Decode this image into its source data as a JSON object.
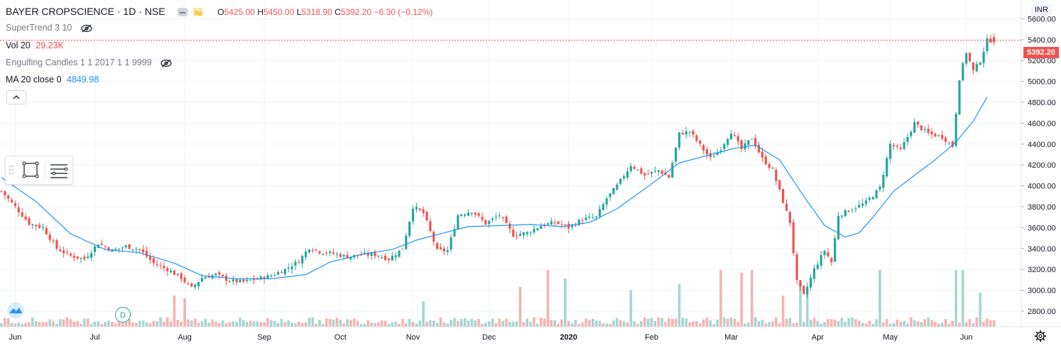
{
  "header": {
    "title": "BAYER CROPSCIENCE · 1D · NSE",
    "o_label": "O",
    "o": "5425.00",
    "h_label": "H",
    "h": "5450.00",
    "l_label": "L",
    "l": "5318.90",
    "c_label": "C",
    "c": "5392.20",
    "change": "−6.30 (−0.12%)"
  },
  "indicators": {
    "supertrend": "SuperTrend 3 10",
    "vol_label": "Vol 20",
    "vol_value": "29.23K",
    "engulfing": "Engulfing Candles 1 1 2017 1 1 9999",
    "ma_label": "MA 20 close 0",
    "ma_value": "4849.98"
  },
  "currency": "INR",
  "last_price": "5392.20",
  "marker": "D",
  "colors": {
    "up": "#26a69a",
    "down": "#ef5350",
    "ma": "#2196f3",
    "grid": "#f0f3fa",
    "axis_text": "#131722"
  },
  "icons": [
    "chart-type-icon",
    "eye-slash-icon",
    "rectangle-tool-icon",
    "lines-tool-icon",
    "tradingview-logo-icon",
    "settings-gear-icon"
  ],
  "chart_data": {
    "type": "candlestick",
    "title": "BAYER CROPSCIENCE · 1D · NSE",
    "ylim": [
      2650,
      5780
    ],
    "y_ticks": [
      2800,
      3000,
      3200,
      3400,
      3600,
      3800,
      4000,
      4200,
      4400,
      4600,
      4800,
      5000,
      5200,
      5400,
      5600
    ],
    "x_ticks": [
      "Jun",
      "Jul",
      "Aug",
      "Sep",
      "Oct",
      "Nov",
      "Dec",
      "2020",
      "Feb",
      "Mar",
      "Apr",
      "May",
      "Jun"
    ],
    "x_tick_index": [
      4,
      27,
      53,
      76,
      98,
      119,
      141,
      164,
      188,
      211,
      236,
      257,
      279
    ],
    "grid": true,
    "close_series": [
      {
        "i": 0,
        "v": 3950
      },
      {
        "i": 4,
        "v": 3800
      },
      {
        "i": 8,
        "v": 3640
      },
      {
        "i": 12,
        "v": 3600
      },
      {
        "i": 16,
        "v": 3400
      },
      {
        "i": 20,
        "v": 3330
      },
      {
        "i": 24,
        "v": 3300
      },
      {
        "i": 28,
        "v": 3450
      },
      {
        "i": 32,
        "v": 3380
      },
      {
        "i": 36,
        "v": 3420
      },
      {
        "i": 40,
        "v": 3390
      },
      {
        "i": 44,
        "v": 3260
      },
      {
        "i": 48,
        "v": 3200
      },
      {
        "i": 52,
        "v": 3120
      },
      {
        "i": 55,
        "v": 3020
      },
      {
        "i": 58,
        "v": 3120
      },
      {
        "i": 62,
        "v": 3150
      },
      {
        "i": 66,
        "v": 3090
      },
      {
        "i": 70,
        "v": 3080
      },
      {
        "i": 74,
        "v": 3110
      },
      {
        "i": 78,
        "v": 3140
      },
      {
        "i": 82,
        "v": 3200
      },
      {
        "i": 86,
        "v": 3280
      },
      {
        "i": 89,
        "v": 3410
      },
      {
        "i": 92,
        "v": 3370
      },
      {
        "i": 96,
        "v": 3350
      },
      {
        "i": 100,
        "v": 3320
      },
      {
        "i": 104,
        "v": 3340
      },
      {
        "i": 108,
        "v": 3340
      },
      {
        "i": 112,
        "v": 3300
      },
      {
        "i": 116,
        "v": 3400
      },
      {
        "i": 119,
        "v": 3800
      },
      {
        "i": 122,
        "v": 3740
      },
      {
        "i": 126,
        "v": 3380
      },
      {
        "i": 129,
        "v": 3380
      },
      {
        "i": 132,
        "v": 3720
      },
      {
        "i": 136,
        "v": 3760
      },
      {
        "i": 140,
        "v": 3640
      },
      {
        "i": 144,
        "v": 3720
      },
      {
        "i": 148,
        "v": 3530
      },
      {
        "i": 152,
        "v": 3550
      },
      {
        "i": 156,
        "v": 3620
      },
      {
        "i": 160,
        "v": 3650
      },
      {
        "i": 164,
        "v": 3600
      },
      {
        "i": 168,
        "v": 3680
      },
      {
        "i": 172,
        "v": 3700
      },
      {
        "i": 175,
        "v": 3880
      },
      {
        "i": 178,
        "v": 4000
      },
      {
        "i": 182,
        "v": 4200
      },
      {
        "i": 186,
        "v": 4100
      },
      {
        "i": 190,
        "v": 4150
      },
      {
        "i": 193,
        "v": 4080
      },
      {
        "i": 196,
        "v": 4500
      },
      {
        "i": 199,
        "v": 4520
      },
      {
        "i": 202,
        "v": 4390
      },
      {
        "i": 205,
        "v": 4260
      },
      {
        "i": 208,
        "v": 4360
      },
      {
        "i": 211,
        "v": 4520
      },
      {
        "i": 214,
        "v": 4350
      },
      {
        "i": 217,
        "v": 4460
      },
      {
        "i": 220,
        "v": 4260
      },
      {
        "i": 223,
        "v": 4150
      },
      {
        "i": 226,
        "v": 3850
      },
      {
        "i": 228,
        "v": 3650
      },
      {
        "i": 230,
        "v": 3080
      },
      {
        "i": 232,
        "v": 2950
      },
      {
        "i": 235,
        "v": 3200
      },
      {
        "i": 238,
        "v": 3380
      },
      {
        "i": 240,
        "v": 3270
      },
      {
        "i": 242,
        "v": 3720
      },
      {
        "i": 246,
        "v": 3780
      },
      {
        "i": 250,
        "v": 3840
      },
      {
        "i": 254,
        "v": 3980
      },
      {
        "i": 257,
        "v": 4400
      },
      {
        "i": 260,
        "v": 4340
      },
      {
        "i": 264,
        "v": 4600
      },
      {
        "i": 268,
        "v": 4500
      },
      {
        "i": 272,
        "v": 4470
      },
      {
        "i": 275,
        "v": 4380
      },
      {
        "i": 277,
        "v": 5030
      },
      {
        "i": 279,
        "v": 5280
      },
      {
        "i": 281,
        "v": 5100
      },
      {
        "i": 283,
        "v": 5200
      },
      {
        "i": 285,
        "v": 5392
      }
    ],
    "ma20_series": [
      {
        "i": 0,
        "v": 4080
      },
      {
        "i": 10,
        "v": 3850
      },
      {
        "i": 20,
        "v": 3540
      },
      {
        "i": 30,
        "v": 3390
      },
      {
        "i": 40,
        "v": 3360
      },
      {
        "i": 50,
        "v": 3260
      },
      {
        "i": 58,
        "v": 3140
      },
      {
        "i": 68,
        "v": 3110
      },
      {
        "i": 78,
        "v": 3110
      },
      {
        "i": 88,
        "v": 3150
      },
      {
        "i": 95,
        "v": 3270
      },
      {
        "i": 105,
        "v": 3350
      },
      {
        "i": 113,
        "v": 3390
      },
      {
        "i": 120,
        "v": 3480
      },
      {
        "i": 128,
        "v": 3550
      },
      {
        "i": 135,
        "v": 3610
      },
      {
        "i": 145,
        "v": 3620
      },
      {
        "i": 153,
        "v": 3630
      },
      {
        "i": 162,
        "v": 3610
      },
      {
        "i": 170,
        "v": 3650
      },
      {
        "i": 178,
        "v": 3780
      },
      {
        "i": 188,
        "v": 4020
      },
      {
        "i": 196,
        "v": 4220
      },
      {
        "i": 204,
        "v": 4290
      },
      {
        "i": 212,
        "v": 4360
      },
      {
        "i": 218,
        "v": 4390
      },
      {
        "i": 225,
        "v": 4250
      },
      {
        "i": 232,
        "v": 3900
      },
      {
        "i": 238,
        "v": 3620
      },
      {
        "i": 244,
        "v": 3510
      },
      {
        "i": 248,
        "v": 3550
      },
      {
        "i": 252,
        "v": 3700
      },
      {
        "i": 258,
        "v": 3950
      },
      {
        "i": 264,
        "v": 4100
      },
      {
        "i": 270,
        "v": 4250
      },
      {
        "i": 276,
        "v": 4420
      },
      {
        "i": 281,
        "v": 4620
      },
      {
        "i": 285,
        "v": 4850
      }
    ],
    "volume_spikes": [
      {
        "i": 50,
        "r": 0.55,
        "up": false
      },
      {
        "i": 53,
        "r": 0.5,
        "up": false
      },
      {
        "i": 122,
        "r": 0.45,
        "up": true
      },
      {
        "i": 150,
        "r": 0.7,
        "up": false
      },
      {
        "i": 158,
        "r": 1.0,
        "up": false
      },
      {
        "i": 163,
        "r": 0.85,
        "up": true
      },
      {
        "i": 182,
        "r": 0.65,
        "up": true
      },
      {
        "i": 196,
        "r": 0.75,
        "up": true
      },
      {
        "i": 208,
        "r": 1.0,
        "up": false
      },
      {
        "i": 214,
        "r": 0.95,
        "up": false
      },
      {
        "i": 217,
        "r": 1.0,
        "up": false
      },
      {
        "i": 226,
        "r": 0.55,
        "up": false
      },
      {
        "i": 231,
        "r": 0.8,
        "up": true
      },
      {
        "i": 233,
        "r": 0.65,
        "up": true
      },
      {
        "i": 254,
        "r": 1.0,
        "up": true
      },
      {
        "i": 276,
        "r": 1.0,
        "up": true
      },
      {
        "i": 278,
        "r": 1.0,
        "up": true
      },
      {
        "i": 283,
        "r": 0.6,
        "up": true
      }
    ]
  }
}
